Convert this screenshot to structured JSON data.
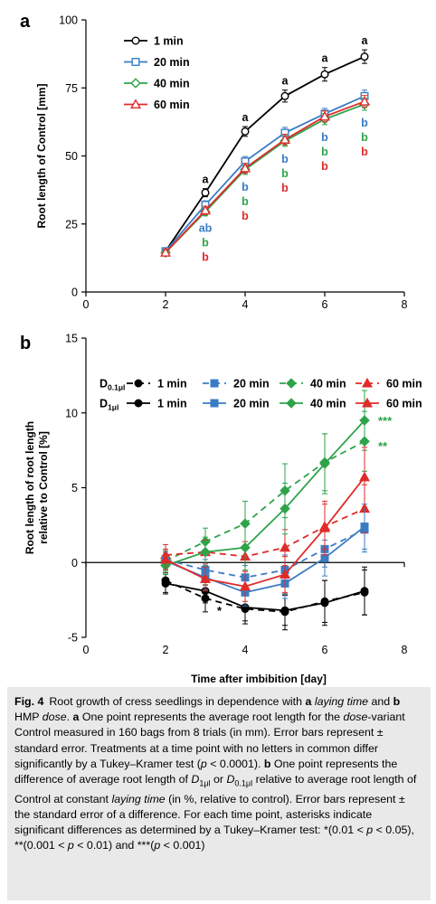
{
  "chart_data": [
    {
      "panel_label": "a",
      "type": "line",
      "xlabel": "",
      "ylabel": "Root length of Control [mm]",
      "xlim": [
        0,
        8
      ],
      "ylim": [
        0,
        100
      ],
      "xticks": [
        "0",
        "2",
        "4",
        "6",
        "8"
      ],
      "yticks": [
        "0",
        "25",
        "50",
        "75",
        "100"
      ],
      "x": [
        2,
        3,
        4,
        5,
        6,
        7
      ],
      "legend_placement": "top-left",
      "series": [
        {
          "name": "1 min",
          "color": "#000000",
          "marker": "circle-open",
          "values": [
            15,
            36.5,
            59,
            72,
            80,
            86.5
          ],
          "errors": [
            1.2,
            1.5,
            1.8,
            2.2,
            2.5,
            2.5
          ]
        },
        {
          "name": "20 min",
          "color": "#3a7cc4",
          "marker": "square-open",
          "values": [
            15,
            32,
            48,
            58.5,
            65.5,
            72
          ],
          "errors": [
            1.2,
            1.5,
            1.8,
            2.0,
            2.0,
            2.2
          ]
        },
        {
          "name": "40 min",
          "color": "#2ea34a",
          "marker": "diamond-open",
          "values": [
            14.5,
            29.5,
            45,
            55.5,
            63.5,
            69
          ],
          "errors": [
            1.2,
            1.5,
            1.8,
            2.0,
            2.0,
            2.2
          ]
        },
        {
          "name": "60 min",
          "color": "#e02b2b",
          "marker": "triangle-open",
          "values": [
            14.5,
            30,
            45.5,
            56,
            64.5,
            70
          ],
          "errors": [
            1.2,
            1.5,
            1.8,
            2.0,
            2.0,
            2.2
          ]
        }
      ],
      "annotations": [
        {
          "x": 3,
          "stack": [
            {
              "text": "a",
              "color": "#000000",
              "side": "above"
            },
            {
              "text": "ab",
              "color": "#3a7cc4",
              "side": "below"
            },
            {
              "text": "b",
              "color": "#2ea34a",
              "side": "below"
            },
            {
              "text": "b",
              "color": "#e02b2b",
              "side": "below"
            }
          ]
        },
        {
          "x": 4,
          "stack": [
            {
              "text": "a",
              "color": "#000000",
              "side": "above"
            },
            {
              "text": "b",
              "color": "#3a7cc4",
              "side": "below"
            },
            {
              "text": "b",
              "color": "#2ea34a",
              "side": "below"
            },
            {
              "text": "b",
              "color": "#e02b2b",
              "side": "below"
            }
          ]
        },
        {
          "x": 5,
          "stack": [
            {
              "text": "a",
              "color": "#000000",
              "side": "above"
            },
            {
              "text": "b",
              "color": "#3a7cc4",
              "side": "below"
            },
            {
              "text": "b",
              "color": "#2ea34a",
              "side": "below"
            },
            {
              "text": "b",
              "color": "#e02b2b",
              "side": "below"
            }
          ]
        },
        {
          "x": 6,
          "stack": [
            {
              "text": "a",
              "color": "#000000",
              "side": "above"
            },
            {
              "text": "b",
              "color": "#3a7cc4",
              "side": "below"
            },
            {
              "text": "b",
              "color": "#2ea34a",
              "side": "below"
            },
            {
              "text": "b",
              "color": "#e02b2b",
              "side": "below"
            }
          ]
        },
        {
          "x": 7,
          "stack": [
            {
              "text": "a",
              "color": "#000000",
              "side": "above"
            },
            {
              "text": "b",
              "color": "#3a7cc4",
              "side": "below"
            },
            {
              "text": "b",
              "color": "#2ea34a",
              "side": "below"
            },
            {
              "text": "b",
              "color": "#e02b2b",
              "side": "below"
            }
          ]
        }
      ]
    },
    {
      "panel_label": "b",
      "type": "line",
      "xlabel": "Time after imbibition  [day]",
      "ylabel": "Root length of root length relative to Control [%]",
      "ylabel_lines": [
        "Root length of root length",
        "relative to Control [%]"
      ],
      "xlim": [
        0,
        8
      ],
      "ylim": [
        -5,
        15
      ],
      "xticks": [
        "0",
        "2",
        "4",
        "6",
        "8"
      ],
      "yticks": [
        "-5",
        "0",
        "5",
        "10",
        "15"
      ],
      "x": [
        2,
        3,
        4,
        5,
        6,
        7
      ],
      "legend_placement": "top",
      "legend_rows": [
        {
          "label_main": "D",
          "label_sub": "0.1μl",
          "dashed": true
        },
        {
          "label_main": "D",
          "label_sub": "1μl",
          "dashed": false
        }
      ],
      "legend_columns": [
        "1 min",
        "20 min",
        "40 min",
        "60 min"
      ],
      "series": [
        {
          "name": "1 min",
          "dose": "D0.1μl",
          "color": "#000000",
          "dashed": true,
          "marker": "circle",
          "values": [
            -1.2,
            -2.4,
            -3.1,
            -3.3,
            -2.6,
            -2.0
          ],
          "errors": [
            0.8,
            0.9,
            1.0,
            1.2,
            1.4,
            1.5
          ]
        },
        {
          "name": "20 min",
          "dose": "D0.1μl",
          "color": "#3a7cc4",
          "dashed": true,
          "marker": "square",
          "values": [
            0.2,
            -0.5,
            -1.0,
            -0.5,
            0.9,
            2.2
          ],
          "errors": [
            0.6,
            0.7,
            0.8,
            1.0,
            1.2,
            1.5
          ]
        },
        {
          "name": "40 min",
          "dose": "D0.1μl",
          "color": "#2ea34a",
          "dashed": true,
          "marker": "diamond",
          "values": [
            0.1,
            1.4,
            2.6,
            4.8,
            6.7,
            8.1
          ],
          "errors": [
            0.7,
            0.9,
            1.5,
            1.8,
            1.9,
            2.0
          ]
        },
        {
          "name": "60 min",
          "dose": "D0.1μl",
          "color": "#e02b2b",
          "dashed": true,
          "marker": "triangle",
          "values": [
            0.5,
            0.7,
            0.4,
            1.0,
            2.4,
            3.6
          ],
          "errors": [
            0.7,
            0.8,
            1.0,
            1.2,
            1.5,
            1.6
          ]
        },
        {
          "name": "1 min",
          "dose": "D1μl",
          "color": "#000000",
          "dashed": false,
          "marker": "circle",
          "values": [
            -1.4,
            -1.9,
            -3.0,
            -3.2,
            -2.7,
            -1.9
          ],
          "errors": [
            0.7,
            0.8,
            0.9,
            1.0,
            1.5,
            1.6
          ]
        },
        {
          "name": "20 min",
          "dose": "D1μl",
          "color": "#3a7cc4",
          "dashed": false,
          "marker": "square",
          "values": [
            0.1,
            -1.0,
            -2.0,
            -1.4,
            0.3,
            2.4
          ],
          "errors": [
            0.6,
            0.8,
            0.9,
            1.0,
            1.2,
            1.5
          ]
        },
        {
          "name": "40 min",
          "dose": "D1μl",
          "color": "#2ea34a",
          "dashed": false,
          "marker": "diamond",
          "values": [
            -0.2,
            0.7,
            1.0,
            3.6,
            6.6,
            9.5
          ],
          "errors": [
            0.6,
            1.0,
            1.5,
            1.7,
            2.0,
            2.0
          ]
        },
        {
          "name": "60 min",
          "dose": "D1μl",
          "color": "#e02b2b",
          "dashed": false,
          "marker": "triangle",
          "values": [
            0.2,
            -1.1,
            -1.6,
            -0.8,
            2.3,
            5.7
          ],
          "errors": [
            0.7,
            0.8,
            1.0,
            1.2,
            1.8,
            2.0
          ]
        }
      ],
      "annotations": [
        {
          "x": 7,
          "y": 9.5,
          "text": "***",
          "color": "#2ea34a"
        },
        {
          "x": 7,
          "y": 7.8,
          "text": "**",
          "color": "#2ea34a"
        },
        {
          "x": 3,
          "y": -3.2,
          "text": "*",
          "color": "#000000"
        }
      ]
    }
  ],
  "caption": {
    "label": "Fig. 4",
    "parts": [
      {
        "t": "Root growth of cress seedlings in dependence with "
      },
      {
        "t": "a",
        "b": true
      },
      {
        "t": " "
      },
      {
        "t": "laying time",
        "i": true
      },
      {
        "t": " and "
      },
      {
        "t": "b",
        "b": true
      },
      {
        "t": " HMP "
      },
      {
        "t": "dose",
        "i": true
      },
      {
        "t": ". "
      },
      {
        "t": "a",
        "b": true
      },
      {
        "t": " One point represents the average root length for the "
      },
      {
        "t": "dose",
        "i": true
      },
      {
        "t": "-variant Control measured in 160 bags from 8 trials (in mm). Error bars represent ± standard error. Treatments at a time point with no letters in common differ significantly by a Tukey–Kramer test ("
      },
      {
        "t": "p",
        "i": true
      },
      {
        "t": " < 0.0001). "
      },
      {
        "t": "b",
        "b": true
      },
      {
        "t": " One point represents the difference of average root length of "
      },
      {
        "t": "D",
        "i": true
      },
      {
        "t": "1μl",
        "sub": true
      },
      {
        "t": " or "
      },
      {
        "t": "D",
        "i": true
      },
      {
        "t": "0.1μl",
        "sub": true
      },
      {
        "t": " relative to average root length of Control at constant "
      },
      {
        "t": "laying time",
        "i": true
      },
      {
        "t": " (in %, relative to control). Error bars represent ± the standard error of a difference. For each time point, asterisks indicate significant differences as determined by a Tukey–Kramer test: *(0.01 < "
      },
      {
        "t": "p",
        "i": true
      },
      {
        "t": " < 0.05), **(0.001 < "
      },
      {
        "t": "p",
        "i": true
      },
      {
        "t": " < 0.01) and ***("
      },
      {
        "t": "p",
        "i": true
      },
      {
        "t": " < 0.001)"
      }
    ]
  }
}
